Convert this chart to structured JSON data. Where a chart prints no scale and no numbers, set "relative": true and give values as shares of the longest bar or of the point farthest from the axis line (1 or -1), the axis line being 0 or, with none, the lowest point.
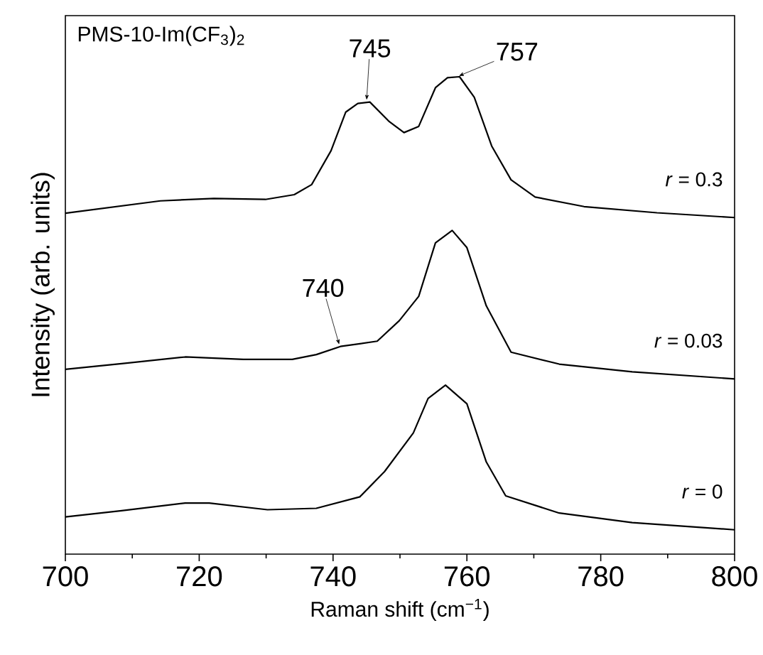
{
  "chart_data": {
    "type": "line",
    "title": "PMS-10-Im(CF$_{3}$)$_{2}$",
    "xlabel": "Raman shift (cm$^{−1}$)",
    "ylabel": "Intensity (arb. units)",
    "relative": true,
    "xlim": [
      700,
      800
    ],
    "xticks": [
      700,
      720,
      740,
      760,
      780,
      800
    ],
    "annotations": [
      {
        "text": "745",
        "x": 745,
        "y": 0.947
      },
      {
        "text": "757",
        "x": 758.5,
        "y": 1.0
      },
      {
        "text": "740",
        "x": 741,
        "y": 0.435
      }
    ],
    "series": [
      {
        "name": "*r* = 0.3",
        "color": "#000000",
        "x": [
          700,
          714.2,
          722.2,
          729.9,
          734.2,
          736.8,
          739.7,
          741.9,
          743.7,
          745.5,
          748.4,
          750.6,
          752.8,
          755.3,
          757.1,
          758.9,
          761.1,
          763.7,
          766.6,
          770.2,
          777.5,
          788.4,
          800
        ],
        "values": [
          0.714,
          0.74,
          0.745,
          0.743,
          0.753,
          0.774,
          0.845,
          0.926,
          0.944,
          0.947,
          0.906,
          0.883,
          0.896,
          0.977,
          0.998,
          1.0,
          0.957,
          0.855,
          0.784,
          0.748,
          0.728,
          0.715,
          0.705
        ]
      },
      {
        "name": "*r* = 0.03",
        "color": "#000000",
        "x": [
          700,
          708.4,
          717.9,
          726.6,
          733.9,
          737.5,
          741.1,
          746.6,
          749.9,
          752.8,
          755.3,
          757.8,
          760.0,
          762.9,
          766.6,
          773.8,
          784.7,
          800
        ],
        "values": [
          0.387,
          0.399,
          0.413,
          0.408,
          0.408,
          0.418,
          0.435,
          0.446,
          0.489,
          0.54,
          0.652,
          0.678,
          0.642,
          0.52,
          0.423,
          0.398,
          0.382,
          0.367
        ]
      },
      {
        "name": "*r* = 0",
        "color": "#000000",
        "x": [
          700,
          708.4,
          717.9,
          721.5,
          730.2,
          737.5,
          744.0,
          747.7,
          752.0,
          754.2,
          756.8,
          760.0,
          762.9,
          765.8,
          773.8,
          784.7,
          800
        ],
        "values": [
          0.078,
          0.091,
          0.107,
          0.107,
          0.093,
          0.096,
          0.12,
          0.173,
          0.254,
          0.326,
          0.354,
          0.315,
          0.193,
          0.122,
          0.086,
          0.066,
          0.051
        ]
      }
    ]
  }
}
